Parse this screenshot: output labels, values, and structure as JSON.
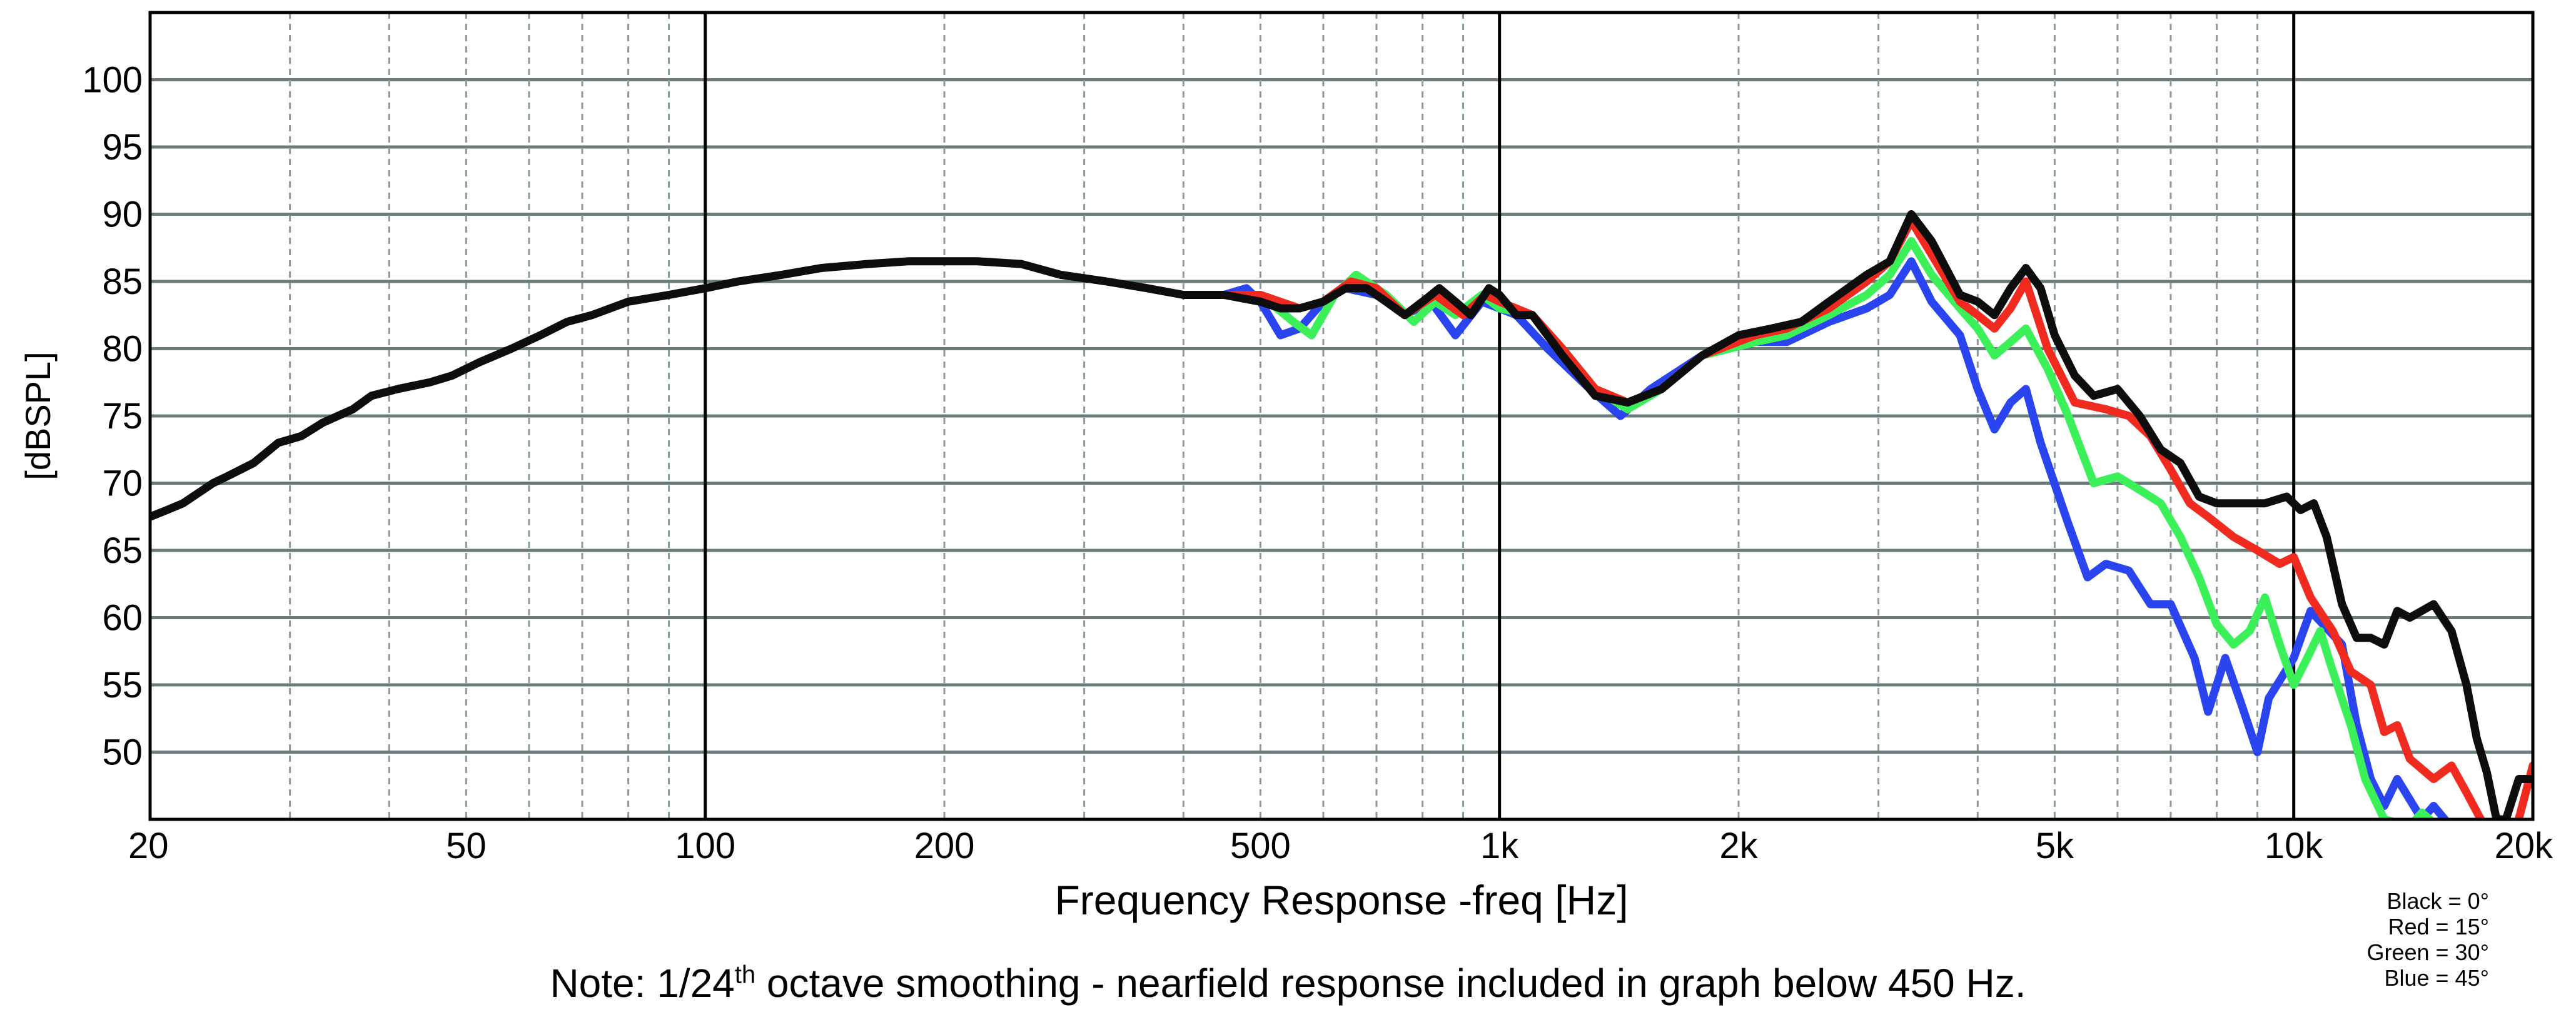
{
  "chart_data": {
    "type": "line",
    "title": "",
    "xlabel": "Frequency Response -freq [Hz]",
    "ylabel": "[dBSPL]",
    "x_scale": "log",
    "xlim": [
      20,
      20000
    ],
    "ylim": [
      45,
      105
    ],
    "grid": true,
    "x_tick_values": [
      20,
      50,
      100,
      200,
      500,
      1000,
      2000,
      5000,
      10000,
      20000
    ],
    "x_tick_labels": [
      "20",
      "50",
      "100",
      "200",
      "500",
      "1k",
      "2k",
      "5k",
      "10k",
      "20k"
    ],
    "x_major_lines": [
      100,
      1000,
      10000
    ],
    "y_ticks": [
      50,
      55,
      60,
      65,
      70,
      75,
      80,
      85,
      90,
      95,
      100
    ],
    "series": [
      {
        "name": "Blue = 45°",
        "color": "#2a44f0",
        "points": [
          [
            450,
            84
          ],
          [
            480,
            84.5
          ],
          [
            500,
            83.5
          ],
          [
            530,
            81
          ],
          [
            560,
            81.5
          ],
          [
            600,
            83.5
          ],
          [
            640,
            84.5
          ],
          [
            700,
            84
          ],
          [
            760,
            82.5
          ],
          [
            820,
            83.5
          ],
          [
            880,
            81
          ],
          [
            950,
            83.5
          ],
          [
            1000,
            83
          ],
          [
            1050,
            82.5
          ],
          [
            1150,
            80
          ],
          [
            1300,
            77
          ],
          [
            1420,
            75
          ],
          [
            1550,
            77
          ],
          [
            1800,
            79.5
          ],
          [
            2000,
            80.5
          ],
          [
            2300,
            80.5
          ],
          [
            2600,
            82
          ],
          [
            2900,
            83
          ],
          [
            3100,
            84
          ],
          [
            3300,
            86.5
          ],
          [
            3500,
            83.5
          ],
          [
            3800,
            81
          ],
          [
            4000,
            77
          ],
          [
            4200,
            74
          ],
          [
            4400,
            76
          ],
          [
            4600,
            77
          ],
          [
            4800,
            73
          ],
          [
            5200,
            67
          ],
          [
            5500,
            63
          ],
          [
            5800,
            64
          ],
          [
            6200,
            63.5
          ],
          [
            6600,
            61
          ],
          [
            7000,
            61
          ],
          [
            7500,
            57
          ],
          [
            7800,
            53
          ],
          [
            8200,
            57
          ],
          [
            8600,
            53.5
          ],
          [
            9000,
            50
          ],
          [
            9300,
            54
          ],
          [
            10000,
            57
          ],
          [
            10500,
            60.5
          ],
          [
            11500,
            58
          ],
          [
            12000,
            52
          ],
          [
            12500,
            48
          ],
          [
            13000,
            46
          ],
          [
            13500,
            48
          ],
          [
            14500,
            45
          ],
          [
            15000,
            46
          ],
          [
            16000,
            44
          ]
        ]
      },
      {
        "name": "Green = 30°",
        "color": "#3cf05a",
        "points": [
          [
            450,
            84
          ],
          [
            500,
            84
          ],
          [
            550,
            82
          ],
          [
            580,
            81
          ],
          [
            620,
            84
          ],
          [
            660,
            85.5
          ],
          [
            720,
            84
          ],
          [
            780,
            82
          ],
          [
            830,
            83.5
          ],
          [
            880,
            82.5
          ],
          [
            950,
            84
          ],
          [
            1000,
            83
          ],
          [
            1100,
            82.5
          ],
          [
            1200,
            80
          ],
          [
            1320,
            77
          ],
          [
            1450,
            75.5
          ],
          [
            1600,
            77
          ],
          [
            1800,
            79.5
          ],
          [
            2100,
            80.5
          ],
          [
            2300,
            81
          ],
          [
            2600,
            82.5
          ],
          [
            2900,
            84
          ],
          [
            3100,
            85.5
          ],
          [
            3300,
            88
          ],
          [
            3500,
            85.5
          ],
          [
            3800,
            83
          ],
          [
            4000,
            81.5
          ],
          [
            4200,
            79.5
          ],
          [
            4400,
            80.5
          ],
          [
            4600,
            81.5
          ],
          [
            4900,
            78.5
          ],
          [
            5200,
            75
          ],
          [
            5600,
            70
          ],
          [
            6000,
            70.5
          ],
          [
            6400,
            69.5
          ],
          [
            6800,
            68.5
          ],
          [
            7200,
            66
          ],
          [
            7600,
            63
          ],
          [
            8000,
            59.5
          ],
          [
            8400,
            58
          ],
          [
            8800,
            59
          ],
          [
            9200,
            61.5
          ],
          [
            9600,
            58
          ],
          [
            10000,
            55
          ],
          [
            10400,
            57
          ],
          [
            10800,
            59
          ],
          [
            11200,
            56
          ],
          [
            11800,
            52
          ],
          [
            12300,
            48
          ],
          [
            13000,
            45
          ],
          [
            14000,
            44.5
          ],
          [
            14500,
            45.5
          ],
          [
            15500,
            44
          ]
        ]
      },
      {
        "name": "Red = 15°",
        "color": "#f02a1e",
        "points": [
          [
            450,
            84
          ],
          [
            500,
            84
          ],
          [
            560,
            83
          ],
          [
            600,
            83.5
          ],
          [
            650,
            85
          ],
          [
            700,
            84.5
          ],
          [
            760,
            82.5
          ],
          [
            830,
            84
          ],
          [
            900,
            82.5
          ],
          [
            960,
            84
          ],
          [
            1000,
            83.5
          ],
          [
            1100,
            82.5
          ],
          [
            1200,
            80
          ],
          [
            1320,
            77
          ],
          [
            1450,
            76
          ],
          [
            1600,
            77
          ],
          [
            1800,
            79.5
          ],
          [
            2100,
            81
          ],
          [
            2300,
            81.5
          ],
          [
            2600,
            83
          ],
          [
            2900,
            85
          ],
          [
            3100,
            86.5
          ],
          [
            3300,
            89.5
          ],
          [
            3500,
            87
          ],
          [
            3800,
            83.5
          ],
          [
            4000,
            82.5
          ],
          [
            4200,
            81.5
          ],
          [
            4400,
            83
          ],
          [
            4600,
            85
          ],
          [
            4900,
            80
          ],
          [
            5300,
            76
          ],
          [
            5800,
            75.5
          ],
          [
            6200,
            75
          ],
          [
            6600,
            73.5
          ],
          [
            7000,
            71
          ],
          [
            7400,
            68.5
          ],
          [
            7800,
            67.5
          ],
          [
            8400,
            66
          ],
          [
            9000,
            65
          ],
          [
            9600,
            64
          ],
          [
            10000,
            64.5
          ],
          [
            10500,
            61.5
          ],
          [
            11200,
            59
          ],
          [
            11800,
            56
          ],
          [
            12500,
            55
          ],
          [
            13000,
            51.5
          ],
          [
            13500,
            52
          ],
          [
            14000,
            49.5
          ],
          [
            15000,
            48
          ],
          [
            15800,
            49
          ],
          [
            16500,
            47
          ],
          [
            17200,
            45
          ],
          [
            17800,
            44
          ],
          [
            19000,
            44
          ],
          [
            20000,
            49
          ]
        ]
      },
      {
        "name": "Black = 0°",
        "color": "#0d0d0d",
        "points": [
          [
            20,
            67.5
          ],
          [
            21,
            68
          ],
          [
            22,
            68.5
          ],
          [
            24,
            70
          ],
          [
            25,
            70.5
          ],
          [
            27,
            71.5
          ],
          [
            29,
            73
          ],
          [
            31,
            73.5
          ],
          [
            33,
            74.5
          ],
          [
            36,
            75.5
          ],
          [
            38,
            76.5
          ],
          [
            41,
            77
          ],
          [
            45,
            77.5
          ],
          [
            48,
            78
          ],
          [
            52,
            79
          ],
          [
            57,
            80
          ],
          [
            62,
            81
          ],
          [
            67,
            82
          ],
          [
            72,
            82.5
          ],
          [
            80,
            83.5
          ],
          [
            90,
            84
          ],
          [
            100,
            84.5
          ],
          [
            110,
            85
          ],
          [
            125,
            85.5
          ],
          [
            140,
            86
          ],
          [
            160,
            86.3
          ],
          [
            180,
            86.5
          ],
          [
            200,
            86.5
          ],
          [
            220,
            86.5
          ],
          [
            250,
            86.3
          ],
          [
            280,
            85.5
          ],
          [
            320,
            85
          ],
          [
            360,
            84.5
          ],
          [
            400,
            84
          ],
          [
            450,
            84
          ],
          [
            500,
            83.5
          ],
          [
            530,
            83
          ],
          [
            560,
            83
          ],
          [
            600,
            83.5
          ],
          [
            640,
            84.5
          ],
          [
            680,
            84.5
          ],
          [
            720,
            83.5
          ],
          [
            760,
            82.5
          ],
          [
            800,
            83.5
          ],
          [
            840,
            84.5
          ],
          [
            880,
            83.5
          ],
          [
            920,
            82.5
          ],
          [
            970,
            84.5
          ],
          [
            1000,
            84
          ],
          [
            1050,
            82.5
          ],
          [
            1100,
            82.5
          ],
          [
            1200,
            79.5
          ],
          [
            1320,
            76.5
          ],
          [
            1450,
            76
          ],
          [
            1600,
            77
          ],
          [
            1800,
            79.5
          ],
          [
            2000,
            81
          ],
          [
            2200,
            81.5
          ],
          [
            2400,
            82
          ],
          [
            2600,
            83.5
          ],
          [
            2900,
            85.5
          ],
          [
            3100,
            86.5
          ],
          [
            3300,
            90
          ],
          [
            3500,
            88
          ],
          [
            3800,
            84
          ],
          [
            4000,
            83.5
          ],
          [
            4200,
            82.5
          ],
          [
            4400,
            84.5
          ],
          [
            4600,
            86
          ],
          [
            4800,
            84.5
          ],
          [
            5000,
            81
          ],
          [
            5300,
            78
          ],
          [
            5600,
            76.5
          ],
          [
            6000,
            77
          ],
          [
            6400,
            75
          ],
          [
            6800,
            72.5
          ],
          [
            7200,
            71.5
          ],
          [
            7600,
            69
          ],
          [
            8000,
            68.5
          ],
          [
            8600,
            68.5
          ],
          [
            9200,
            68.5
          ],
          [
            9800,
            69
          ],
          [
            10200,
            68
          ],
          [
            10600,
            68.5
          ],
          [
            11000,
            66
          ],
          [
            11500,
            61
          ],
          [
            12000,
            58.5
          ],
          [
            12500,
            58.5
          ],
          [
            13000,
            58
          ],
          [
            13500,
            60.5
          ],
          [
            14000,
            60
          ],
          [
            15000,
            61
          ],
          [
            15800,
            59
          ],
          [
            16500,
            55
          ],
          [
            17000,
            51
          ],
          [
            17500,
            48.5
          ],
          [
            18000,
            45
          ],
          [
            18500,
            45
          ],
          [
            19200,
            48
          ],
          [
            20000,
            48
          ]
        ]
      }
    ]
  },
  "note": {
    "prefix": "Note: 1/24",
    "superscript": "th",
    "suffix": " octave smoothing - nearfield response included in graph below 450 Hz."
  },
  "legend": {
    "lines": [
      "Black = 0°",
      "Red = 15°",
      "Green = 30°",
      "Blue = 45°"
    ]
  }
}
